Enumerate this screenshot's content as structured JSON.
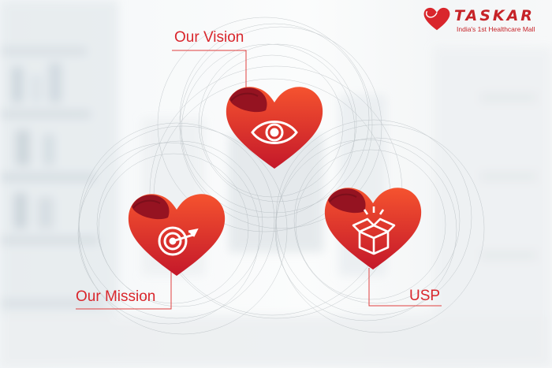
{
  "brand": {
    "name": "TASKAR",
    "tagline": "India's 1st Healthcare Mall"
  },
  "items": [
    {
      "label": "Our Vision",
      "icon": "eye-icon"
    },
    {
      "label": "Our Mission",
      "icon": "target-arrow-icon"
    },
    {
      "label": "USP",
      "icon": "open-box-icon"
    }
  ],
  "colors": {
    "accent": "#d9262c",
    "heart_top": "#f04e30",
    "heart_bottom": "#c0182a",
    "heart_lobe": "#8e1220",
    "line": "#e0403f"
  }
}
